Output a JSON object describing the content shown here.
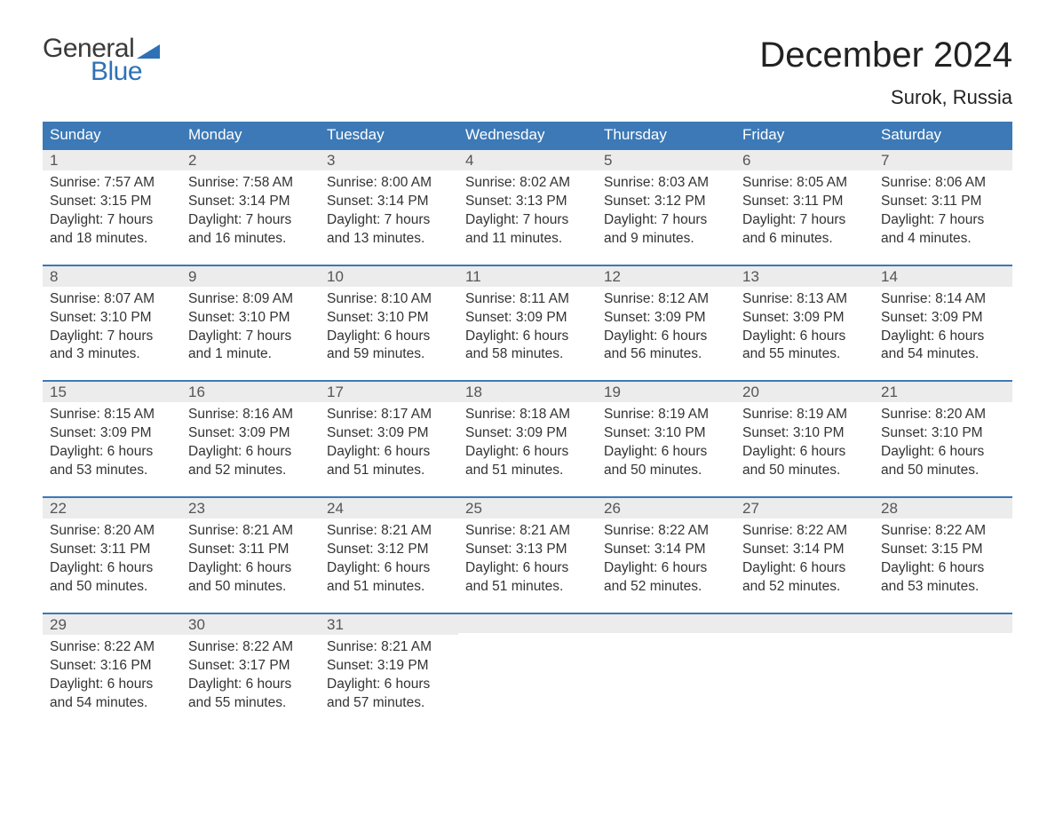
{
  "logo": {
    "text_general": "General",
    "text_blue": "Blue",
    "flag_color": "#2e72b5"
  },
  "header": {
    "month_title": "December 2024",
    "location": "Surok, Russia"
  },
  "styling": {
    "header_bg": "#3c79b6",
    "header_text": "#ffffff",
    "daynum_bg": "#ececec",
    "week_border": "#3c79b6",
    "body_bg": "#ffffff",
    "text_color": "#333333",
    "title_fontsize": 40,
    "location_fontsize": 22,
    "weekday_fontsize": 17,
    "daynum_fontsize": 17,
    "dayinfo_fontsize": 15.5
  },
  "weekdays": [
    "Sunday",
    "Monday",
    "Tuesday",
    "Wednesday",
    "Thursday",
    "Friday",
    "Saturday"
  ],
  "weeks": [
    [
      {
        "n": "1",
        "sunrise": "7:57 AM",
        "sunset": "3:15 PM",
        "dl1": "7 hours",
        "dl2": "and 18 minutes."
      },
      {
        "n": "2",
        "sunrise": "7:58 AM",
        "sunset": "3:14 PM",
        "dl1": "7 hours",
        "dl2": "and 16 minutes."
      },
      {
        "n": "3",
        "sunrise": "8:00 AM",
        "sunset": "3:14 PM",
        "dl1": "7 hours",
        "dl2": "and 13 minutes."
      },
      {
        "n": "4",
        "sunrise": "8:02 AM",
        "sunset": "3:13 PM",
        "dl1": "7 hours",
        "dl2": "and 11 minutes."
      },
      {
        "n": "5",
        "sunrise": "8:03 AM",
        "sunset": "3:12 PM",
        "dl1": "7 hours",
        "dl2": "and 9 minutes."
      },
      {
        "n": "6",
        "sunrise": "8:05 AM",
        "sunset": "3:11 PM",
        "dl1": "7 hours",
        "dl2": "and 6 minutes."
      },
      {
        "n": "7",
        "sunrise": "8:06 AM",
        "sunset": "3:11 PM",
        "dl1": "7 hours",
        "dl2": "and 4 minutes."
      }
    ],
    [
      {
        "n": "8",
        "sunrise": "8:07 AM",
        "sunset": "3:10 PM",
        "dl1": "7 hours",
        "dl2": "and 3 minutes."
      },
      {
        "n": "9",
        "sunrise": "8:09 AM",
        "sunset": "3:10 PM",
        "dl1": "7 hours",
        "dl2": "and 1 minute."
      },
      {
        "n": "10",
        "sunrise": "8:10 AM",
        "sunset": "3:10 PM",
        "dl1": "6 hours",
        "dl2": "and 59 minutes."
      },
      {
        "n": "11",
        "sunrise": "8:11 AM",
        "sunset": "3:09 PM",
        "dl1": "6 hours",
        "dl2": "and 58 minutes."
      },
      {
        "n": "12",
        "sunrise": "8:12 AM",
        "sunset": "3:09 PM",
        "dl1": "6 hours",
        "dl2": "and 56 minutes."
      },
      {
        "n": "13",
        "sunrise": "8:13 AM",
        "sunset": "3:09 PM",
        "dl1": "6 hours",
        "dl2": "and 55 minutes."
      },
      {
        "n": "14",
        "sunrise": "8:14 AM",
        "sunset": "3:09 PM",
        "dl1": "6 hours",
        "dl2": "and 54 minutes."
      }
    ],
    [
      {
        "n": "15",
        "sunrise": "8:15 AM",
        "sunset": "3:09 PM",
        "dl1": "6 hours",
        "dl2": "and 53 minutes."
      },
      {
        "n": "16",
        "sunrise": "8:16 AM",
        "sunset": "3:09 PM",
        "dl1": "6 hours",
        "dl2": "and 52 minutes."
      },
      {
        "n": "17",
        "sunrise": "8:17 AM",
        "sunset": "3:09 PM",
        "dl1": "6 hours",
        "dl2": "and 51 minutes."
      },
      {
        "n": "18",
        "sunrise": "8:18 AM",
        "sunset": "3:09 PM",
        "dl1": "6 hours",
        "dl2": "and 51 minutes."
      },
      {
        "n": "19",
        "sunrise": "8:19 AM",
        "sunset": "3:10 PM",
        "dl1": "6 hours",
        "dl2": "and 50 minutes."
      },
      {
        "n": "20",
        "sunrise": "8:19 AM",
        "sunset": "3:10 PM",
        "dl1": "6 hours",
        "dl2": "and 50 minutes."
      },
      {
        "n": "21",
        "sunrise": "8:20 AM",
        "sunset": "3:10 PM",
        "dl1": "6 hours",
        "dl2": "and 50 minutes."
      }
    ],
    [
      {
        "n": "22",
        "sunrise": "8:20 AM",
        "sunset": "3:11 PM",
        "dl1": "6 hours",
        "dl2": "and 50 minutes."
      },
      {
        "n": "23",
        "sunrise": "8:21 AM",
        "sunset": "3:11 PM",
        "dl1": "6 hours",
        "dl2": "and 50 minutes."
      },
      {
        "n": "24",
        "sunrise": "8:21 AM",
        "sunset": "3:12 PM",
        "dl1": "6 hours",
        "dl2": "and 51 minutes."
      },
      {
        "n": "25",
        "sunrise": "8:21 AM",
        "sunset": "3:13 PM",
        "dl1": "6 hours",
        "dl2": "and 51 minutes."
      },
      {
        "n": "26",
        "sunrise": "8:22 AM",
        "sunset": "3:14 PM",
        "dl1": "6 hours",
        "dl2": "and 52 minutes."
      },
      {
        "n": "27",
        "sunrise": "8:22 AM",
        "sunset": "3:14 PM",
        "dl1": "6 hours",
        "dl2": "and 52 minutes."
      },
      {
        "n": "28",
        "sunrise": "8:22 AM",
        "sunset": "3:15 PM",
        "dl1": "6 hours",
        "dl2": "and 53 minutes."
      }
    ],
    [
      {
        "n": "29",
        "sunrise": "8:22 AM",
        "sunset": "3:16 PM",
        "dl1": "6 hours",
        "dl2": "and 54 minutes."
      },
      {
        "n": "30",
        "sunrise": "8:22 AM",
        "sunset": "3:17 PM",
        "dl1": "6 hours",
        "dl2": "and 55 minutes."
      },
      {
        "n": "31",
        "sunrise": "8:21 AM",
        "sunset": "3:19 PM",
        "dl1": "6 hours",
        "dl2": "and 57 minutes."
      },
      null,
      null,
      null,
      null
    ]
  ],
  "labels": {
    "sunrise": "Sunrise: ",
    "sunset": "Sunset: ",
    "daylight": "Daylight: "
  }
}
